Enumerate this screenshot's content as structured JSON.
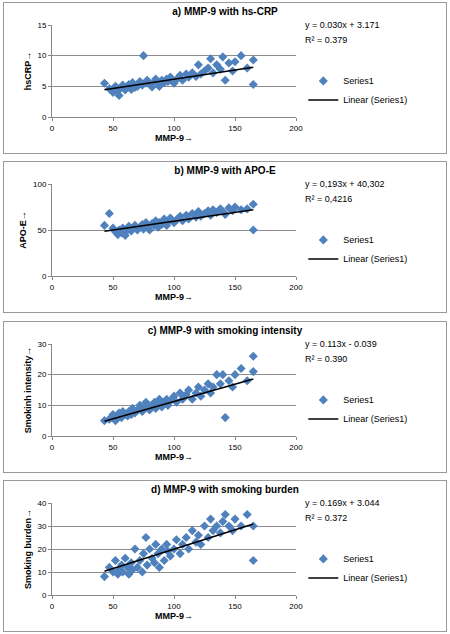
{
  "chart_data": [
    {
      "type": "scatter",
      "title": "a) MMP-9 with hs-CRP",
      "x_label": "MMP-9→",
      "y_label": "hsCRP→",
      "xlim": [
        0,
        200
      ],
      "xticks": [
        0,
        50,
        100,
        150,
        200
      ],
      "ylim": [
        0,
        15
      ],
      "yticks": [
        0,
        5,
        10,
        15
      ],
      "grid": true,
      "legend": "right",
      "annotations": [
        "y = 0.030x + 3.171",
        "R² = 0.379"
      ],
      "series": [
        {
          "name": "Series1",
          "type": "scatter",
          "marker": "diamond",
          "color": "#4f81bd",
          "x": [
            43,
            47,
            50,
            52,
            54,
            55,
            57,
            58,
            60,
            62,
            63,
            65,
            66,
            68,
            70,
            72,
            74,
            75,
            77,
            78,
            80,
            82,
            84,
            85,
            87,
            88,
            90,
            92,
            94,
            95,
            97,
            100,
            102,
            105,
            107,
            110,
            112,
            115,
            118,
            120,
            122,
            125,
            128,
            130,
            132,
            135,
            138,
            140,
            142,
            145,
            148,
            150,
            155,
            160,
            165,
            165
          ],
          "values": [
            5.5,
            4.6,
            4.0,
            5.0,
            4.3,
            3.5,
            4.8,
            5.2,
            4.4,
            4.9,
            5.3,
            4.5,
            5.6,
            4.8,
            5.0,
            5.8,
            5.2,
            10.0,
            5.5,
            6.0,
            5.4,
            4.9,
            5.8,
            6.2,
            5.5,
            5.0,
            6.0,
            5.6,
            6.2,
            5.8,
            6.5,
            5.5,
            6.1,
            6.8,
            6.0,
            7.0,
            6.5,
            7.2,
            6.6,
            8.5,
            7.0,
            7.5,
            8.0,
            9.5,
            7.2,
            8.5,
            7.8,
            9.8,
            6.0,
            8.8,
            7.5,
            9.0,
            10.0,
            8.0,
            5.3,
            9.3
          ]
        },
        {
          "name": "Linear (Series1)",
          "type": "line",
          "line_style": "solid",
          "color": "#000000",
          "x": [
            43,
            165
          ],
          "values": [
            4.46,
            8.12
          ]
        }
      ]
    },
    {
      "type": "scatter",
      "title": "b) MMP-9 with APO-E",
      "x_label": "MMP-9→",
      "y_label": "APO-E→",
      "xlim": [
        0,
        200
      ],
      "xticks": [
        0,
        50,
        100,
        150,
        200
      ],
      "ylim": [
        0,
        100
      ],
      "yticks": [
        0,
        50,
        100
      ],
      "grid": true,
      "legend": "right",
      "annotations": [
        "y = 0,193x + 40,302",
        "R² = 0,4216"
      ],
      "series": [
        {
          "name": "Series1",
          "type": "scatter",
          "marker": "diamond",
          "color": "#4f81bd",
          "x": [
            43,
            47,
            50,
            52,
            54,
            55,
            57,
            58,
            60,
            62,
            63,
            65,
            66,
            68,
            70,
            72,
            74,
            75,
            77,
            78,
            80,
            82,
            84,
            85,
            87,
            88,
            90,
            92,
            94,
            95,
            97,
            100,
            102,
            105,
            107,
            110,
            112,
            115,
            118,
            120,
            122,
            125,
            128,
            130,
            132,
            135,
            138,
            140,
            142,
            145,
            148,
            150,
            155,
            160,
            165,
            165
          ],
          "values": [
            55,
            68,
            52,
            48,
            45,
            50,
            47,
            52,
            44,
            50,
            54,
            49,
            52,
            55,
            50,
            53,
            56,
            51,
            58,
            54,
            50,
            57,
            55,
            60,
            53,
            58,
            56,
            62,
            55,
            59,
            63,
            58,
            61,
            65,
            60,
            66,
            62,
            68,
            64,
            70,
            65,
            68,
            71,
            66,
            72,
            69,
            73,
            70,
            67,
            74,
            71,
            75,
            72,
            73,
            50,
            78
          ]
        },
        {
          "name": "Linear (Series1)",
          "type": "line",
          "line_style": "solid",
          "color": "#000000",
          "x": [
            43,
            165
          ],
          "values": [
            48.6,
            72.1
          ]
        }
      ]
    },
    {
      "type": "scatter",
      "title": "c) MMP-9 with smoking intensity",
      "x_label": "MMP-9→",
      "y_label": "Smokinh intensity→",
      "xlim": [
        0,
        200
      ],
      "xticks": [
        0,
        50,
        100,
        150,
        200
      ],
      "ylim": [
        0,
        30
      ],
      "yticks": [
        0,
        10,
        20,
        30
      ],
      "grid": true,
      "legend": "right",
      "annotations": [
        "y = 0.113x - 0.039",
        "R² = 0.390"
      ],
      "series": [
        {
          "name": "Series1",
          "type": "scatter",
          "marker": "diamond",
          "color": "#4f81bd",
          "x": [
            43,
            47,
            50,
            52,
            54,
            55,
            57,
            58,
            60,
            62,
            63,
            65,
            66,
            68,
            70,
            72,
            74,
            75,
            77,
            78,
            80,
            82,
            84,
            85,
            87,
            88,
            90,
            92,
            94,
            95,
            97,
            100,
            102,
            105,
            107,
            110,
            112,
            115,
            118,
            120,
            122,
            125,
            128,
            130,
            132,
            135,
            138,
            140,
            142,
            145,
            148,
            150,
            155,
            160,
            165,
            165
          ],
          "values": [
            5,
            5.5,
            7,
            5,
            6,
            7.5,
            6,
            8,
            7,
            6.5,
            8,
            7,
            9,
            7.5,
            8.5,
            10,
            8,
            9,
            11,
            9.5,
            8.5,
            10,
            11,
            9,
            10.5,
            12,
            9.5,
            11,
            12,
            10,
            11.5,
            13,
            11,
            14,
            12,
            13.5,
            15,
            12,
            14,
            16,
            13,
            15,
            17,
            14,
            16,
            20,
            17,
            20,
            6,
            18,
            16,
            20,
            22,
            18,
            21,
            26
          ]
        },
        {
          "name": "Linear (Series1)",
          "type": "line",
          "line_style": "solid",
          "color": "#000000",
          "x": [
            43,
            165
          ],
          "values": [
            4.82,
            18.6
          ]
        }
      ]
    },
    {
      "type": "scatter",
      "title": "d) MMP-9 with smoking burden",
      "x_label": "MMP-9→",
      "y_label": "Smoking burden→",
      "xlim": [
        0,
        200
      ],
      "xticks": [
        0,
        50,
        100,
        150,
        200
      ],
      "ylim": [
        0,
        40
      ],
      "yticks": [
        0,
        10,
        20,
        30,
        40
      ],
      "grid": true,
      "legend": "right",
      "annotations": [
        "y = 0.169x + 3.044",
        "R² = 0.372"
      ],
      "series": [
        {
          "name": "Series1",
          "type": "scatter",
          "marker": "diamond",
          "color": "#4f81bd",
          "x": [
            43,
            47,
            50,
            52,
            54,
            55,
            57,
            58,
            60,
            62,
            63,
            65,
            66,
            68,
            70,
            72,
            74,
            75,
            77,
            78,
            80,
            82,
            84,
            85,
            87,
            88,
            90,
            92,
            94,
            95,
            97,
            100,
            102,
            105,
            107,
            110,
            112,
            115,
            118,
            120,
            122,
            125,
            128,
            130,
            132,
            135,
            138,
            140,
            142,
            145,
            148,
            150,
            155,
            160,
            165,
            165
          ],
          "values": [
            8,
            12,
            10,
            15,
            9,
            11,
            13,
            10,
            16,
            12,
            9,
            14,
            11,
            20,
            12,
            15,
            10,
            18,
            25,
            13,
            20,
            16,
            14,
            22,
            18,
            12,
            20,
            15,
            22,
            19,
            17,
            20,
            24,
            18,
            22,
            25,
            20,
            28,
            23,
            26,
            22,
            30,
            25,
            33,
            28,
            30,
            27,
            32,
            35,
            30,
            28,
            33,
            30,
            35,
            15,
            30
          ]
        },
        {
          "name": "Linear (Series1)",
          "type": "line",
          "line_style": "solid",
          "color": "#000000",
          "x": [
            43,
            165
          ],
          "values": [
            10.3,
            30.9
          ]
        }
      ]
    }
  ]
}
